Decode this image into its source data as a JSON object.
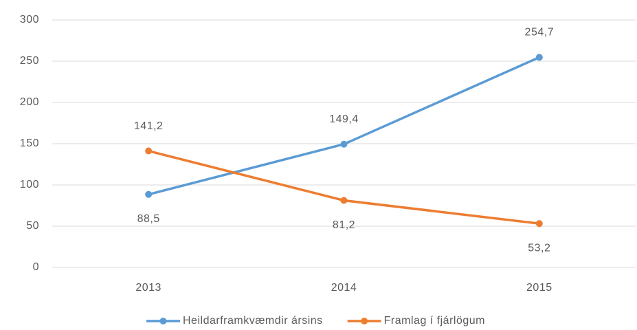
{
  "chart_data": {
    "type": "line",
    "categories": [
      "2013",
      "2014",
      "2015"
    ],
    "series": [
      {
        "name": "Heildarframkvæmdir ársins",
        "color": "#5b9bd5",
        "values": [
          88.5,
          149.4,
          254.7
        ],
        "value_labels": [
          "88,5",
          "149,4",
          "254,7"
        ]
      },
      {
        "name": "Framlag í fjárlögum",
        "color": "#ed7d31",
        "values": [
          141.2,
          81.2,
          53.2
        ],
        "value_labels": [
          "141,2",
          "81,2",
          "53,2"
        ]
      }
    ],
    "ylim": [
      0,
      300
    ],
    "yticks": [
      0,
      50,
      100,
      150,
      200,
      250,
      300
    ],
    "grid": true,
    "legend": "bottom"
  }
}
